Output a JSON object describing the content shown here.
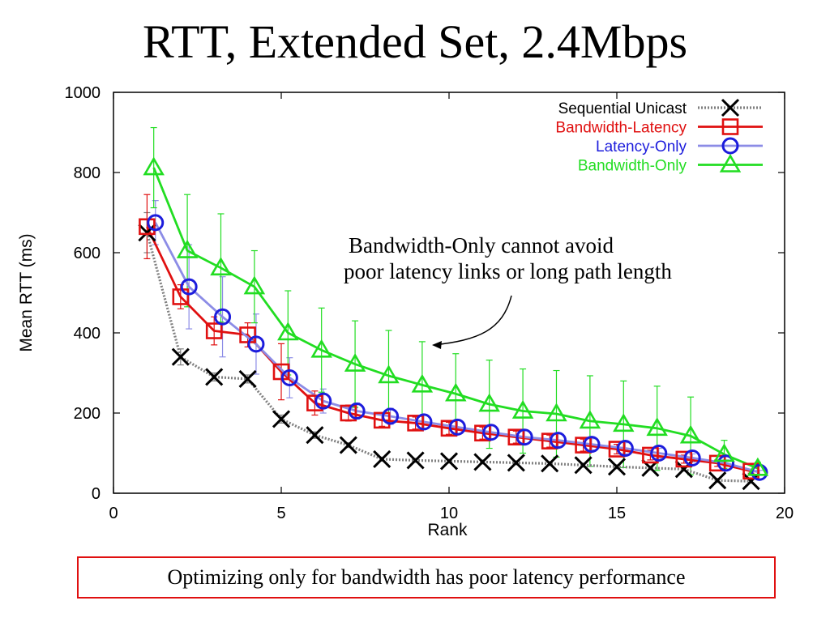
{
  "slide": {
    "title": "RTT, Extended Set, 2.4Mbps",
    "annotation_line1": "Bandwidth-Only cannot avoid",
    "annotation_line2": "poor latency links or long path length",
    "caption": "Optimizing only for bandwidth has poor latency performance"
  },
  "chart_data": {
    "type": "line",
    "xlabel": "Rank",
    "ylabel": "Mean RTT (ms)",
    "xlim": [
      0,
      20
    ],
    "ylim": [
      0,
      1000
    ],
    "xticks": [
      0,
      5,
      10,
      15,
      20
    ],
    "yticks": [
      0,
      200,
      400,
      600,
      800,
      1000
    ],
    "grid": false,
    "legend_position": "top-right",
    "series": [
      {
        "name": "Sequential Unicast",
        "color": "#000000",
        "line_color": "#808080",
        "line_style": "dotted",
        "marker": "x",
        "x": [
          1,
          2,
          3,
          4,
          5,
          6,
          7,
          8,
          9,
          10,
          11,
          12,
          13,
          14,
          15,
          16,
          17,
          18,
          19
        ],
        "y": [
          650,
          340,
          290,
          285,
          185,
          145,
          120,
          85,
          82,
          80,
          78,
          76,
          74,
          70,
          66,
          63,
          60,
          32,
          30
        ],
        "err": [
          50,
          20,
          10,
          10,
          10,
          8,
          6,
          5,
          5,
          5,
          5,
          5,
          5,
          5,
          5,
          5,
          5,
          5,
          5
        ]
      },
      {
        "name": "Bandwidth-Latency",
        "color": "#e01010",
        "line_style": "solid",
        "marker": "square",
        "x": [
          1,
          2,
          3,
          4,
          5,
          6,
          7,
          8,
          9,
          10,
          11,
          12,
          13,
          14,
          15,
          16,
          17,
          18,
          19
        ],
        "y": [
          665,
          490,
          405,
          395,
          303,
          225,
          200,
          182,
          175,
          162,
          150,
          140,
          130,
          120,
          110,
          95,
          85,
          75,
          55
        ],
        "err": [
          80,
          30,
          35,
          30,
          70,
          30,
          20,
          15,
          15,
          15,
          15,
          15,
          15,
          15,
          12,
          12,
          10,
          8,
          5
        ]
      },
      {
        "name": "Latency-Only",
        "color": "#1c1cdc",
        "line_color": "#8c8ce6",
        "line_style": "solid",
        "marker": "circle",
        "x": [
          1.25,
          2.25,
          3.25,
          4.25,
          5.25,
          6.25,
          7.25,
          8.25,
          9.25,
          10.25,
          11.25,
          12.25,
          13.25,
          14.25,
          15.25,
          16.25,
          17.25,
          18.25,
          19.25
        ],
        "y": [
          675,
          515,
          440,
          372,
          288,
          230,
          205,
          192,
          178,
          165,
          152,
          140,
          132,
          122,
          112,
          100,
          88,
          75,
          52
        ],
        "err": [
          55,
          105,
          100,
          75,
          50,
          30,
          20,
          20,
          18,
          18,
          18,
          16,
          16,
          14,
          14,
          12,
          10,
          8,
          5
        ]
      },
      {
        "name": "Bandwidth-Only",
        "color": "#22dd22",
        "line_style": "solid",
        "marker": "triangle",
        "x": [
          1.2,
          2.2,
          3.2,
          4.2,
          5.2,
          6.2,
          7.2,
          8.2,
          9.2,
          10.2,
          11.2,
          12.2,
          13.2,
          14.2,
          15.2,
          16.2,
          17.2,
          18.2,
          19.2
        ],
        "y": [
          812,
          605,
          562,
          515,
          400,
          357,
          322,
          293,
          270,
          248,
          222,
          205,
          198,
          180,
          172,
          162,
          143,
          97,
          62
        ],
        "err": [
          100,
          140,
          135,
          90,
          105,
          105,
          108,
          113,
          108,
          100,
          110,
          105,
          108,
          113,
          108,
          105,
          97,
          35,
          15
        ]
      }
    ]
  }
}
